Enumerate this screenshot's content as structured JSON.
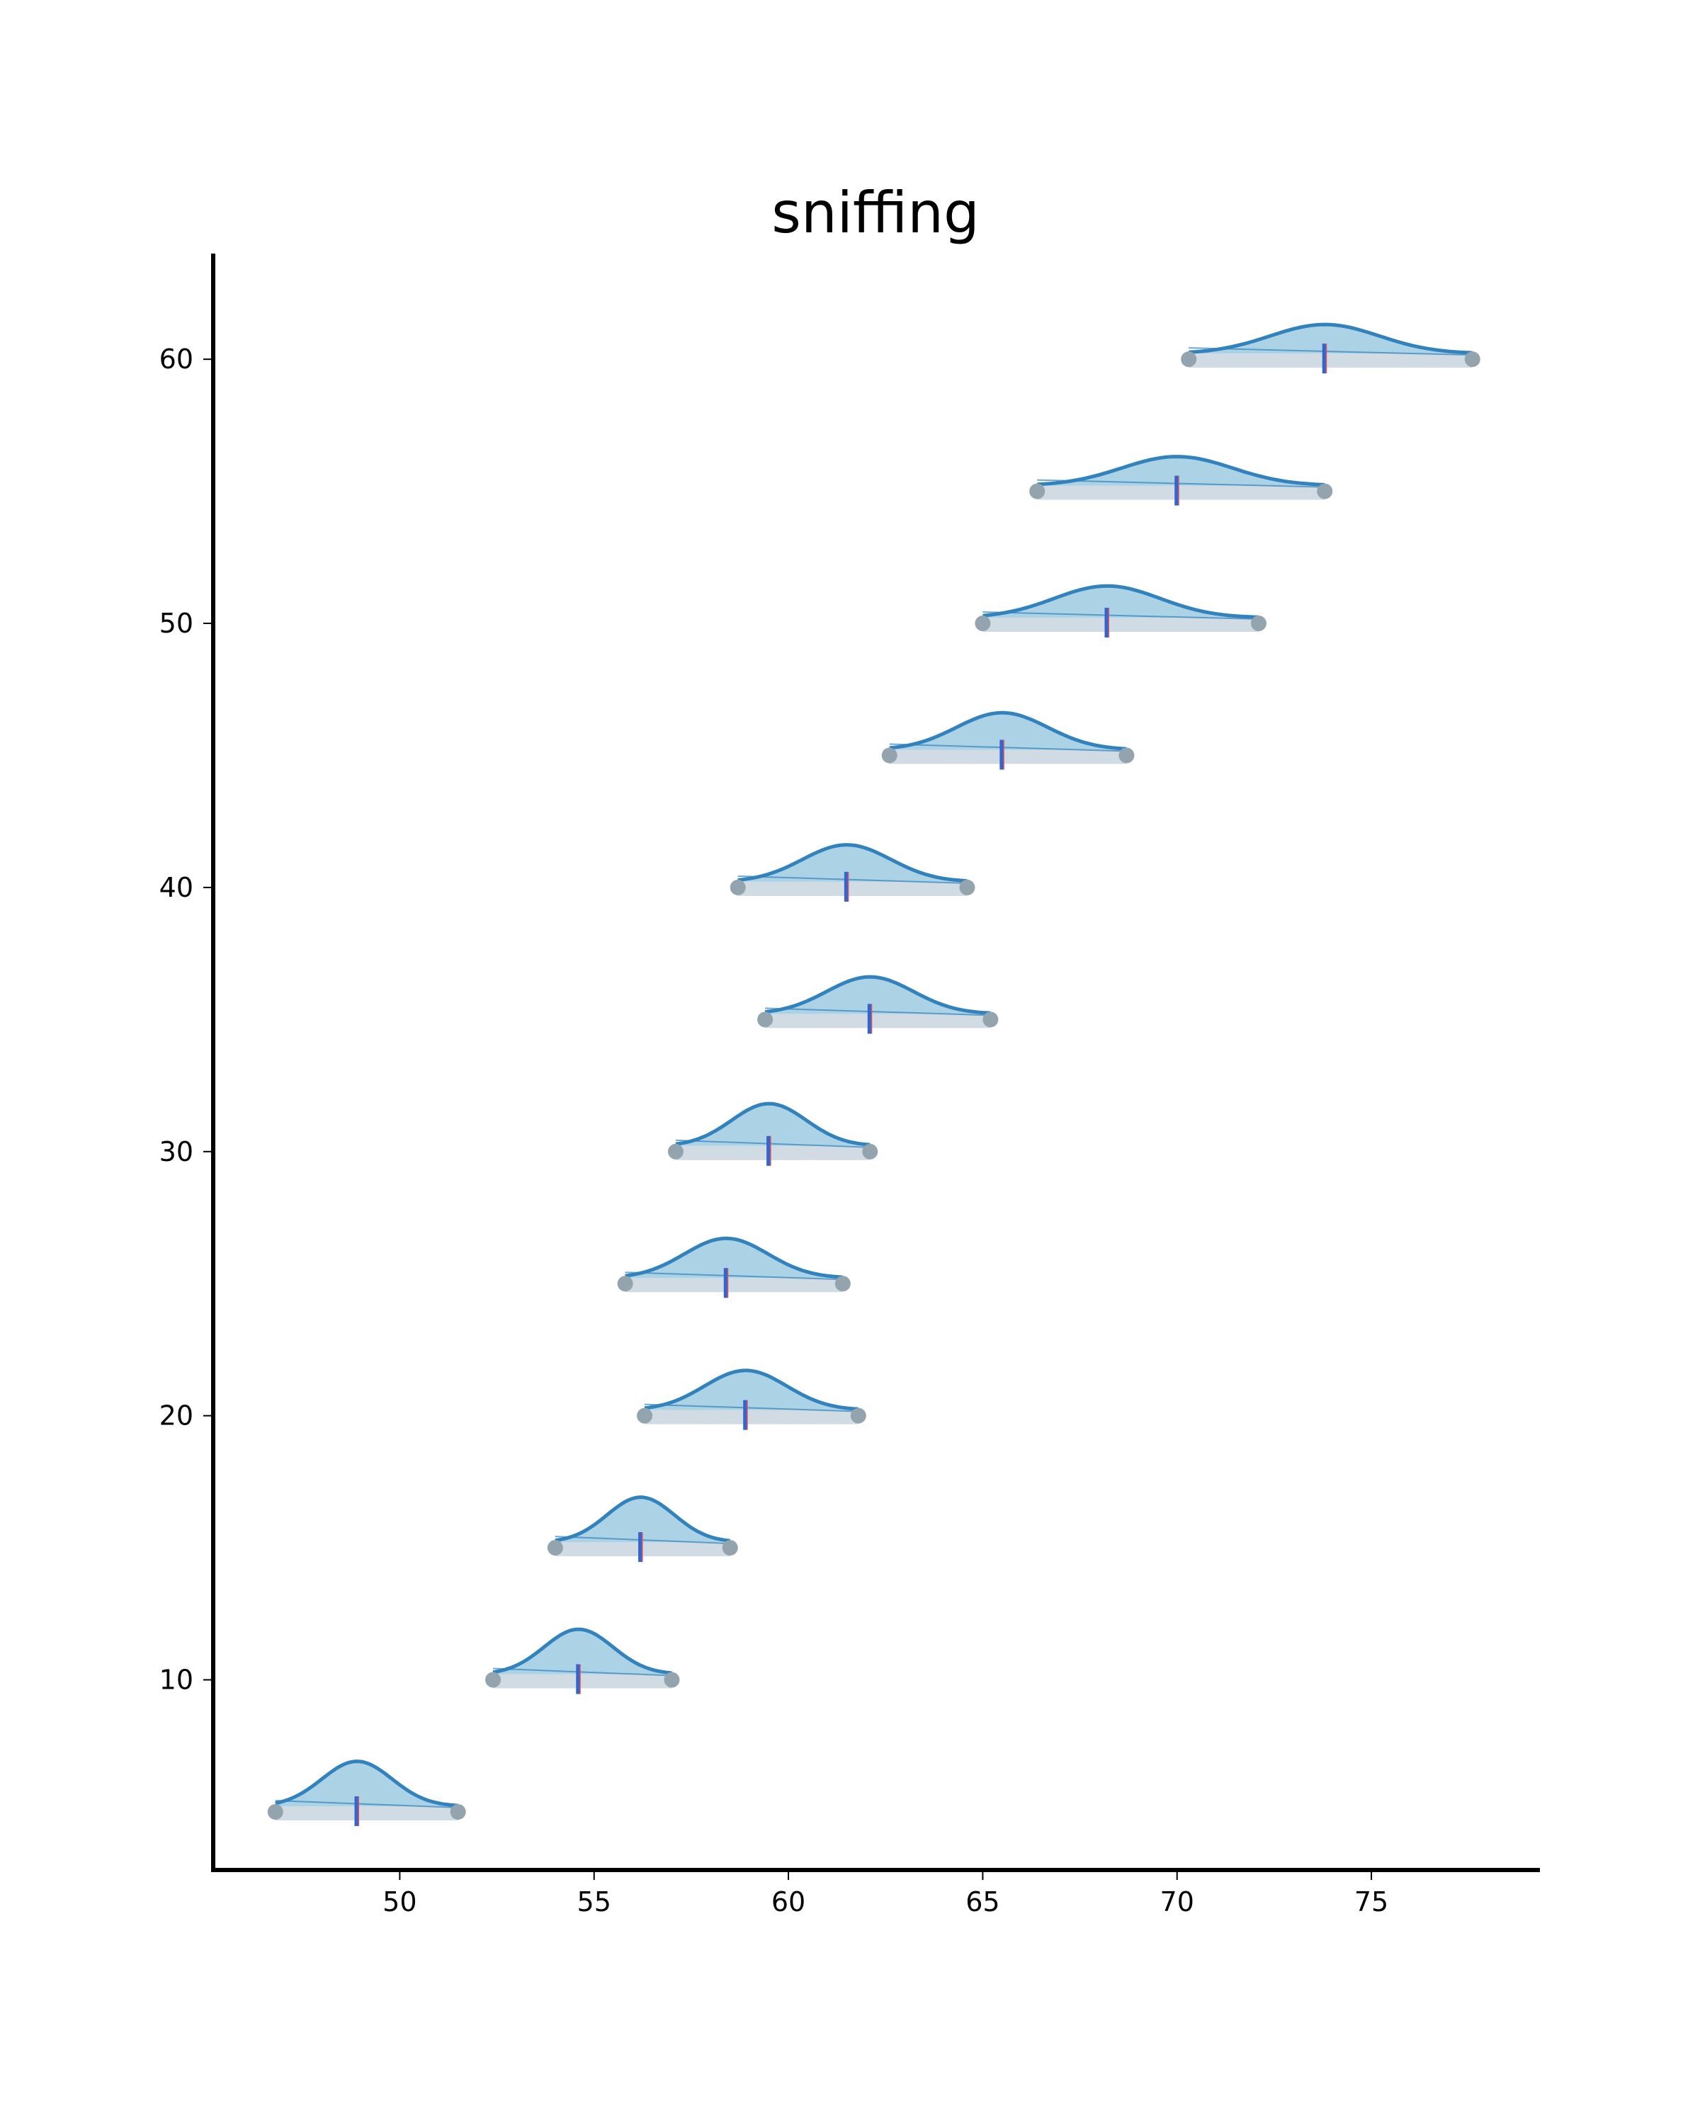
{
  "chart_data": {
    "type": "ridgeline",
    "title": "sniffing",
    "xlabel": "",
    "ylabel": "",
    "xlim": [
      45.2,
      79.3
    ],
    "ylim": [
      2.8,
      64.0
    ],
    "xticks": [
      50,
      55,
      60,
      65,
      70,
      75
    ],
    "yticks": [
      10,
      20,
      30,
      40,
      50,
      60
    ],
    "grid": false,
    "legend": "none",
    "colors": {
      "fill": "#9ecae1",
      "curve": "#3182bd",
      "range_bar": "#d0dbe3",
      "endpoint": "#93a4ae",
      "median": "#3366cc",
      "mean": "#e0505a",
      "axis": "#000000"
    },
    "distributions": [
      {
        "y": 5,
        "min": 46.8,
        "max": 51.5,
        "peak": 48.9,
        "median": 48.9,
        "mean": 48.9,
        "height": 1.7
      },
      {
        "y": 10,
        "min": 52.4,
        "max": 57.0,
        "peak": 54.6,
        "median": 54.6,
        "mean": 54.6,
        "height": 1.7
      },
      {
        "y": 15,
        "min": 54.0,
        "max": 58.5,
        "peak": 56.2,
        "median": 56.2,
        "mean": 56.2,
        "height": 1.7
      },
      {
        "y": 20,
        "min": 56.3,
        "max": 61.8,
        "peak": 58.9,
        "median": 58.9,
        "mean": 58.9,
        "height": 1.5
      },
      {
        "y": 25,
        "min": 55.8,
        "max": 61.4,
        "peak": 58.4,
        "median": 58.4,
        "mean": 58.4,
        "height": 1.5
      },
      {
        "y": 30,
        "min": 57.1,
        "max": 62.1,
        "peak": 59.5,
        "median": 59.5,
        "mean": 59.5,
        "height": 1.6
      },
      {
        "y": 35,
        "min": 59.4,
        "max": 65.2,
        "peak": 62.1,
        "median": 62.1,
        "mean": 62.1,
        "height": 1.4
      },
      {
        "y": 40,
        "min": 58.7,
        "max": 64.6,
        "peak": 61.5,
        "median": 61.5,
        "mean": 61.5,
        "height": 1.4
      },
      {
        "y": 45,
        "min": 62.6,
        "max": 68.7,
        "peak": 65.5,
        "median": 65.5,
        "mean": 65.5,
        "height": 1.4
      },
      {
        "y": 50,
        "min": 65.0,
        "max": 72.1,
        "peak": 68.2,
        "median": 68.2,
        "mean": 68.2,
        "height": 1.2
      },
      {
        "y": 55,
        "min": 66.4,
        "max": 73.8,
        "peak": 70.0,
        "median": 70.0,
        "mean": 70.0,
        "height": 1.1
      },
      {
        "y": 60,
        "min": 70.3,
        "max": 77.6,
        "peak": 73.8,
        "median": 73.8,
        "mean": 73.8,
        "height": 1.1
      }
    ]
  }
}
